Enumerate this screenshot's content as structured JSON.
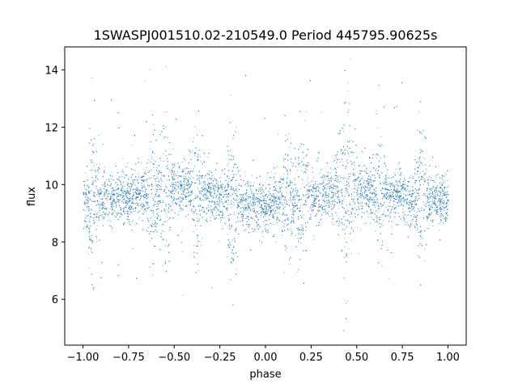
{
  "chart_data": {
    "type": "scatter",
    "title": "1SWASPJ001510.02-210549.0 Period 445795.90625s",
    "xlabel": "phase",
    "ylabel": "flux",
    "xlim": [
      -1.1,
      1.1
    ],
    "ylim": [
      4.4,
      14.8
    ],
    "xticks": [
      -1.0,
      -0.75,
      -0.5,
      -0.25,
      0.0,
      0.25,
      0.5,
      0.75,
      1.0
    ],
    "xtick_labels": [
      "−1.00",
      "−0.75",
      "−0.50",
      "−0.25",
      "0.00",
      "0.25",
      "0.50",
      "0.75",
      "1.00"
    ],
    "yticks": [
      6,
      8,
      10,
      12,
      14
    ],
    "ytick_labels": [
      "6",
      "8",
      "10",
      "12",
      "14"
    ],
    "grid": false,
    "point_color": "#1f77b4",
    "x_range": [
      -1.0,
      1.0
    ],
    "y_range": [
      4.9,
      14.4
    ],
    "baseline_flux": 9.6,
    "phase_profile": [
      {
        "phase": -1.0,
        "flux": 9.4
      },
      {
        "phase": -0.75,
        "flux": 9.6
      },
      {
        "phase": -0.5,
        "flux": 9.9
      },
      {
        "phase": -0.25,
        "flux": 9.6
      },
      {
        "phase": -0.15,
        "flux": 9.3
      },
      {
        "phase": 0.0,
        "flux": 9.3
      },
      {
        "phase": 0.25,
        "flux": 9.6
      },
      {
        "phase": 0.5,
        "flux": 9.9
      },
      {
        "phase": 0.75,
        "flux": 9.6
      },
      {
        "phase": 1.0,
        "flux": 9.4
      }
    ],
    "scatter_bands_phase": [
      -0.95,
      -0.62,
      -0.55,
      -0.38,
      -0.18,
      0.12,
      0.2,
      0.42,
      0.45,
      0.62,
      0.85
    ]
  }
}
